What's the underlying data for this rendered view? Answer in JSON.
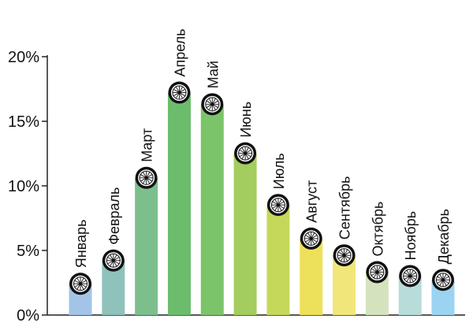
{
  "chart_data": {
    "type": "bar",
    "title": "",
    "xlabel": "",
    "ylabel": "",
    "ylim": [
      0,
      20
    ],
    "yticks": [
      "0%",
      "5%",
      "10%",
      "15%",
      "20%"
    ],
    "categories": [
      "Январь",
      "Февраль",
      "Март",
      "Апрель",
      "Май",
      "Июнь",
      "Июль",
      "Август",
      "Сентябрь",
      "Октябрь",
      "Ноябрь",
      "Декабрь"
    ],
    "values": [
      2.3,
      4.1,
      10.5,
      17.1,
      16.2,
      12.4,
      8.4,
      5.8,
      4.5,
      3.2,
      2.9,
      2.6
    ],
    "colors": [
      "#a3c4e6",
      "#8fc2bb",
      "#7dbf8c",
      "#6bbd6b",
      "#7cc46a",
      "#a3cd5e",
      "#c6d85a",
      "#ede05a",
      "#f1e67a",
      "#d4e3bd",
      "#b8dcd9",
      "#9bd3f0"
    ],
    "marker_icon": "bicycle-wheel-icon",
    "grid": false,
    "legend": "none"
  }
}
